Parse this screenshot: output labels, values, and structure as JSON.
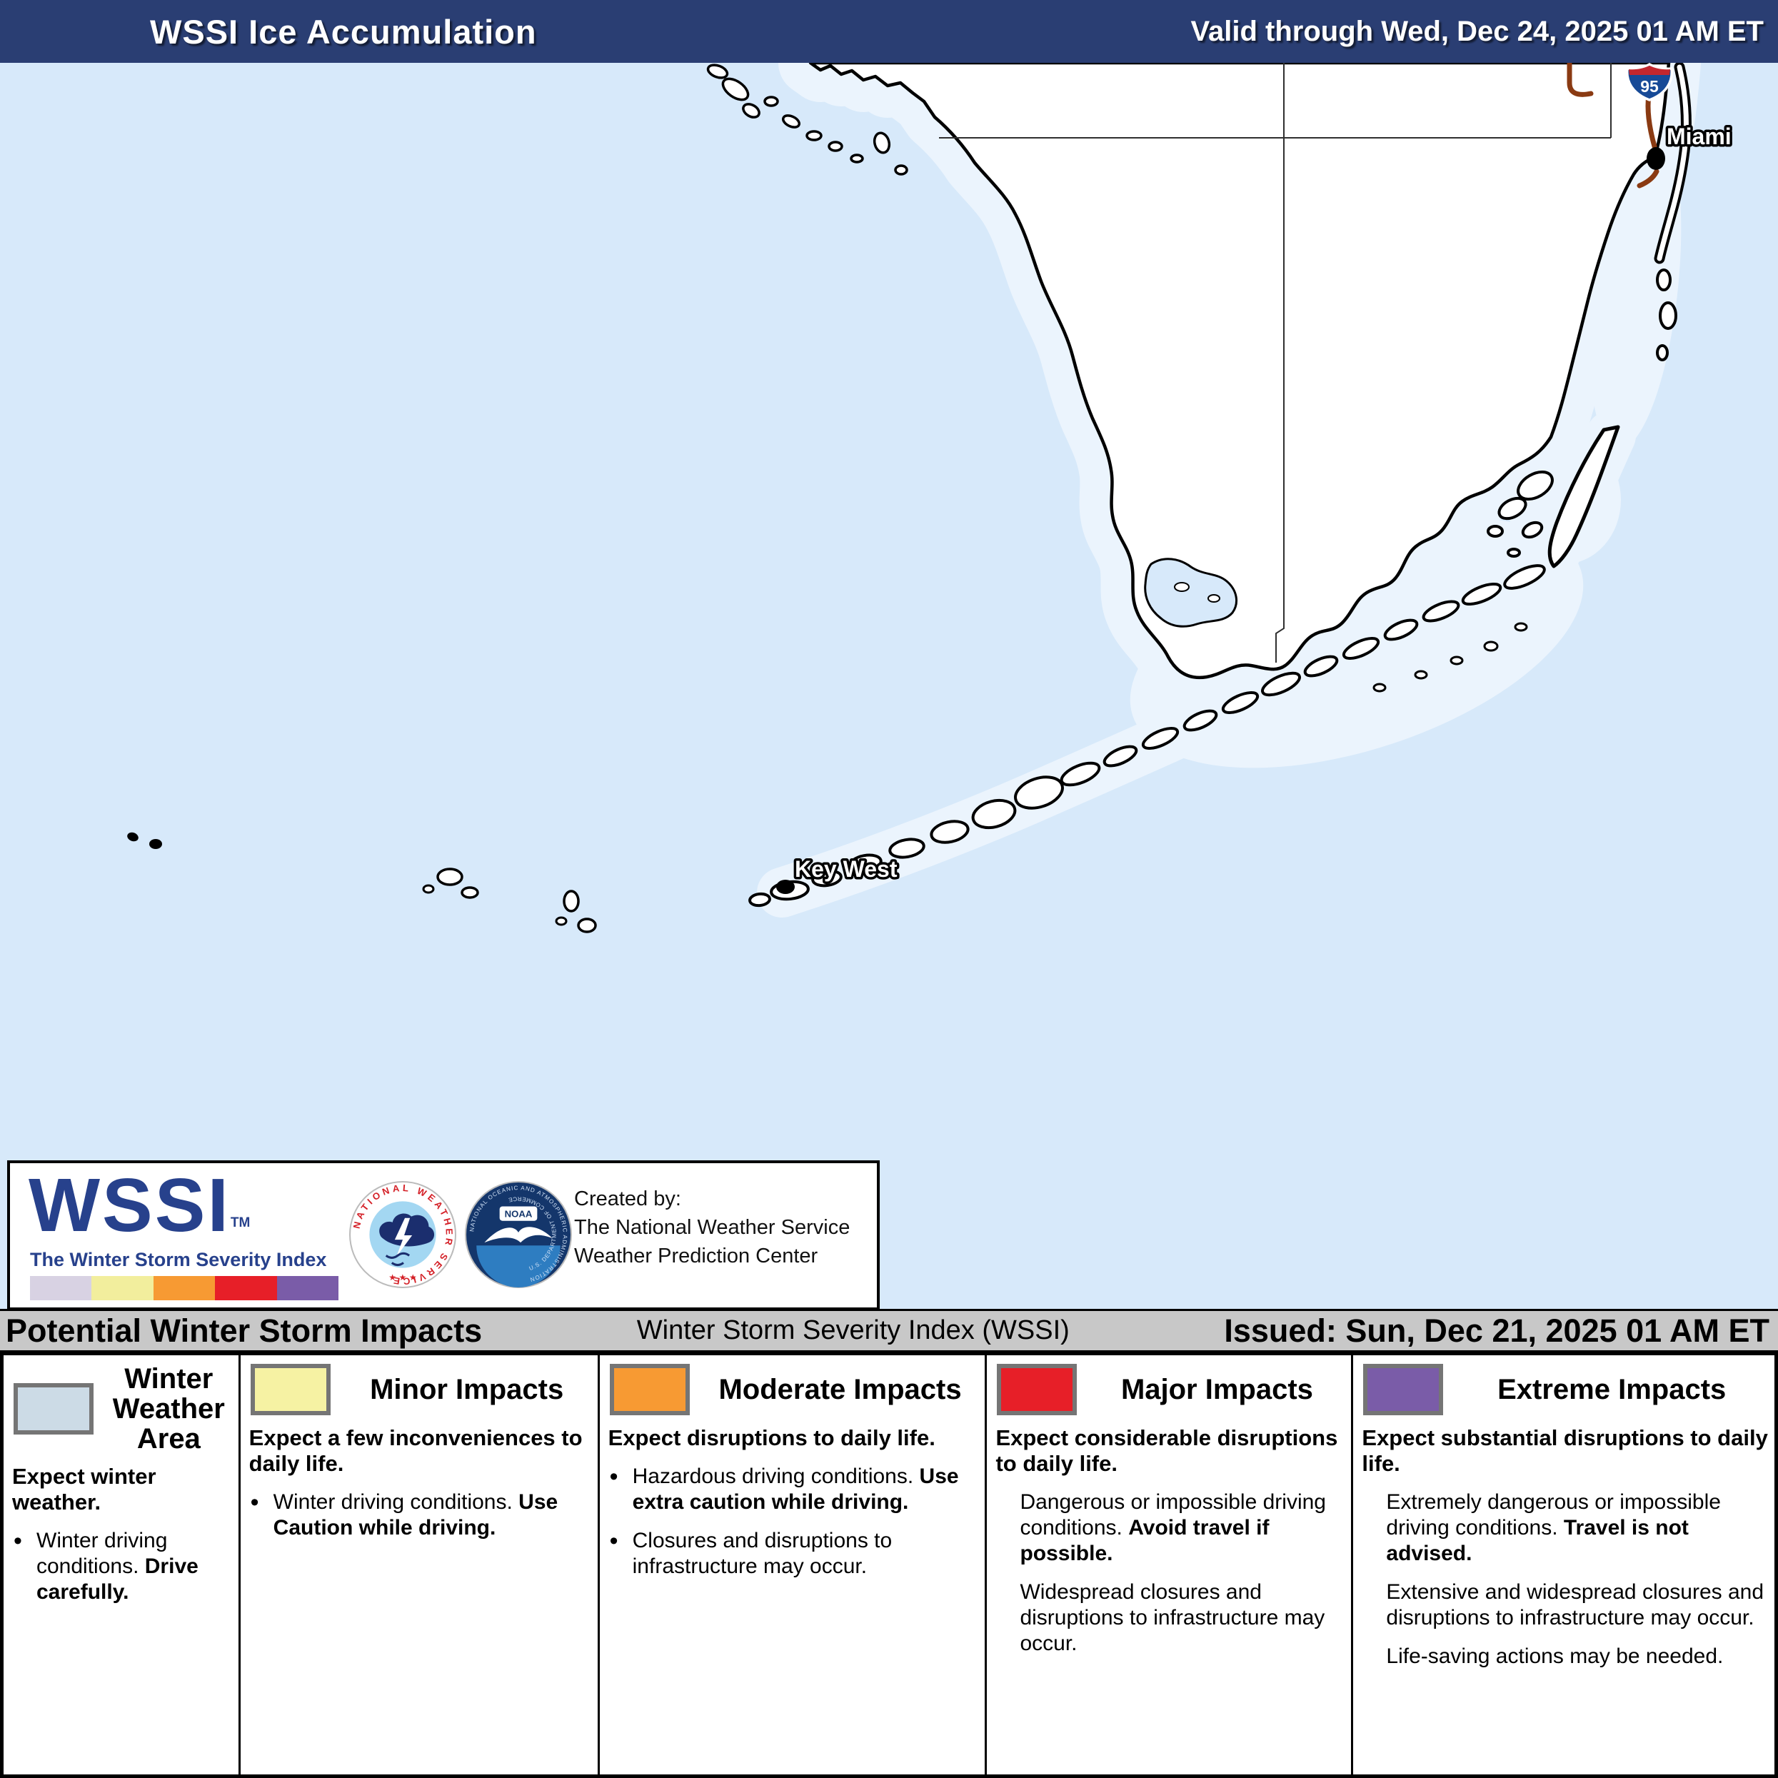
{
  "header": {
    "title": "WSSI Ice Accumulation",
    "valid": "Valid through Wed, Dec 24, 2025 01 AM ET",
    "bg_color": "#2a3e73"
  },
  "map": {
    "water_color": "#d7e9fa",
    "shallow_color": "#ebf4fd",
    "land_color": "#ffffff",
    "road_color": "#8a3a12",
    "shield_number": "95",
    "cities": [
      {
        "name": "Miami"
      },
      {
        "name": "Key West"
      }
    ]
  },
  "logo_box": {
    "wssi": "WSSI",
    "tm": "TM",
    "tagline": "The Winter Storm Severity Index",
    "strip_colors": [
      "#d8d2e3",
      "#f2ee9d",
      "#f79a33",
      "#e71f28",
      "#7a5ca8"
    ],
    "created_lines": [
      "Created by:",
      "The National Weather Service",
      "Weather Prediction Center"
    ],
    "nws_ring": "NATIONAL WEATHER SERVICE",
    "nws_stars": "★ ★ ★",
    "noaa_label": "NOAA",
    "noaa_ring_top": "NATIONAL OCEANIC AND ATMOSPHERIC ADMINISTRATION",
    "noaa_ring_bottom": "U.S. DEPARTMENT OF COMMERCE"
  },
  "info_bar": {
    "left": "Potential Winter Storm Impacts",
    "center": "Winter Storm Severity Index (WSSI)",
    "right": "Issued: Sun, Dec 21, 2025 01 AM ET"
  },
  "legend": {
    "columns": [
      {
        "title": "Winter Weather Area",
        "swatch": "#ccdbe6",
        "lead": "Expect winter weather.",
        "items": [
          {
            "bullet": true,
            "runs": [
              {
                "t": "Winter driving conditions. ",
                "b": false
              },
              {
                "t": "Drive carefully.",
                "b": true
              }
            ]
          }
        ]
      },
      {
        "title": "Minor Impacts",
        "swatch": "#f6f2a3",
        "lead": "Expect a few inconveniences to daily life.",
        "items": [
          {
            "bullet": true,
            "runs": [
              {
                "t": "Winter driving conditions. ",
                "b": false
              },
              {
                "t": "Use Caution while driving.",
                "b": true
              }
            ]
          }
        ]
      },
      {
        "title": "Moderate Impacts",
        "swatch": "#f79a33",
        "lead": "Expect disruptions to daily life.",
        "items": [
          {
            "bullet": true,
            "runs": [
              {
                "t": "Hazardous driving conditions. ",
                "b": false
              },
              {
                "t": "Use extra caution while driving.",
                "b": true
              }
            ]
          },
          {
            "bullet": true,
            "runs": [
              {
                "t": "Closures and disruptions to infrastructure may occur.",
                "b": false
              }
            ]
          }
        ]
      },
      {
        "title": "Major Impacts",
        "swatch": "#e71f28",
        "lead": "Expect considerable disruptions to daily life.",
        "items": [
          {
            "bullet": false,
            "runs": [
              {
                "t": "Dangerous or impossible driving conditions. ",
                "b": false
              },
              {
                "t": "Avoid travel if possible.",
                "b": true
              }
            ]
          },
          {
            "bullet": false,
            "runs": [
              {
                "t": "Widespread closures and disruptions to infrastructure may occur.",
                "b": false
              }
            ]
          }
        ]
      },
      {
        "title": "Extreme Impacts",
        "swatch": "#7a5ca8",
        "lead": "Expect substantial disruptions to daily life.",
        "items": [
          {
            "bullet": false,
            "runs": [
              {
                "t": "Extremely dangerous or impossible driving conditions. ",
                "b": false
              },
              {
                "t": "Travel is not advised.",
                "b": true
              }
            ]
          },
          {
            "bullet": false,
            "runs": [
              {
                "t": "Extensive and widespread closures and disruptions to infrastructure may occur.",
                "b": false
              }
            ]
          },
          {
            "bullet": false,
            "runs": [
              {
                "t": "Life-saving actions may be needed.",
                "b": false
              }
            ]
          }
        ]
      }
    ]
  }
}
